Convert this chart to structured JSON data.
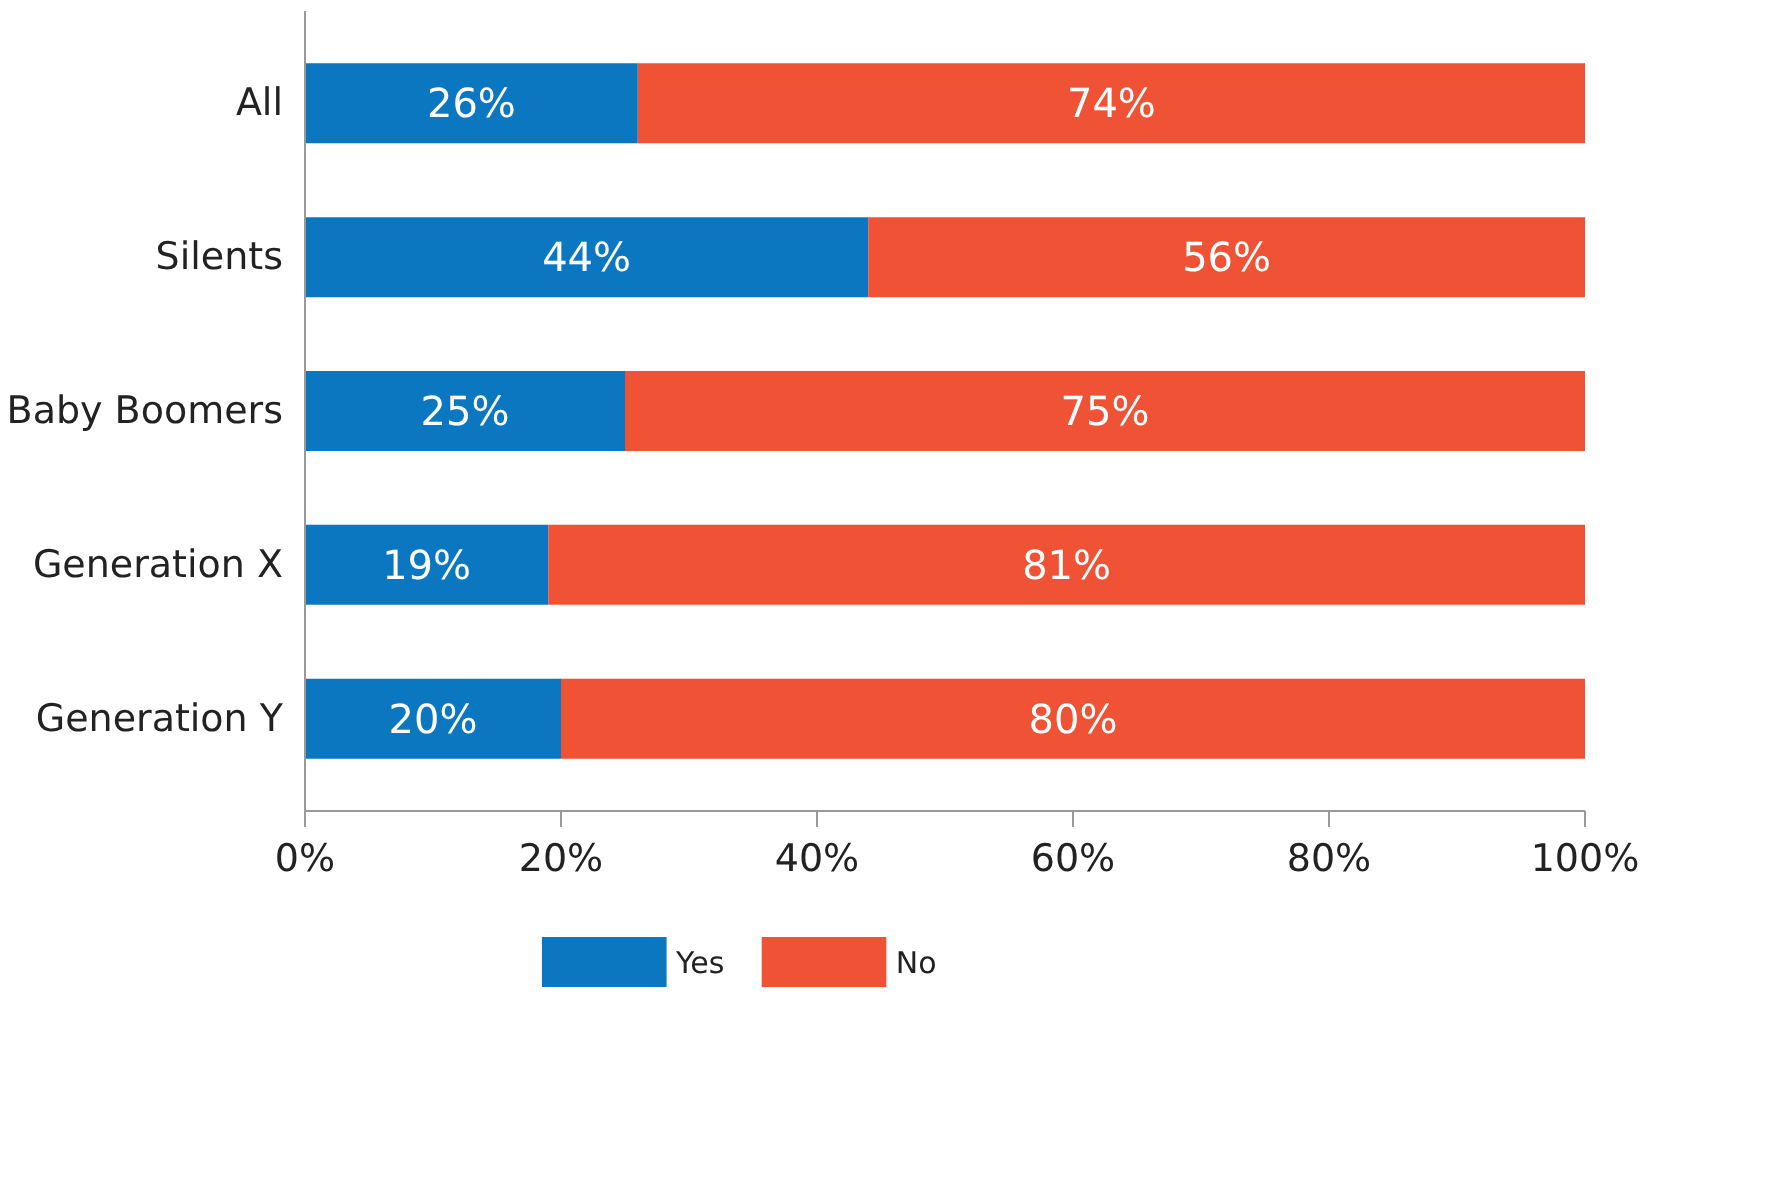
{
  "chart_data": {
    "type": "bar",
    "orientation": "horizontal",
    "stacked": true,
    "categories": [
      "All",
      "Silents",
      "Baby Boomers",
      "Generation X",
      "Generation Y"
    ],
    "series": [
      {
        "name": "Yes",
        "color": "#0a77c0",
        "values": [
          26,
          44,
          25,
          19,
          20
        ],
        "value_labels": [
          "26%",
          "44%",
          "25%",
          "19%",
          "20%"
        ]
      },
      {
        "name": "No",
        "color": "#ef5234",
        "values": [
          74,
          56,
          75,
          81,
          80
        ],
        "value_labels": [
          "74%",
          "56%",
          "75%",
          "81%",
          "80%"
        ]
      }
    ],
    "xlim": [
      0,
      100
    ],
    "xticks": [
      {
        "value": 0,
        "label": "0%"
      },
      {
        "value": 20,
        "label": "20%"
      },
      {
        "value": 40,
        "label": "40%"
      },
      {
        "value": 60,
        "label": "60%"
      },
      {
        "value": 80,
        "label": "80%"
      },
      {
        "value": 100,
        "label": "100%"
      }
    ],
    "grid": false,
    "legend": "bottom"
  }
}
